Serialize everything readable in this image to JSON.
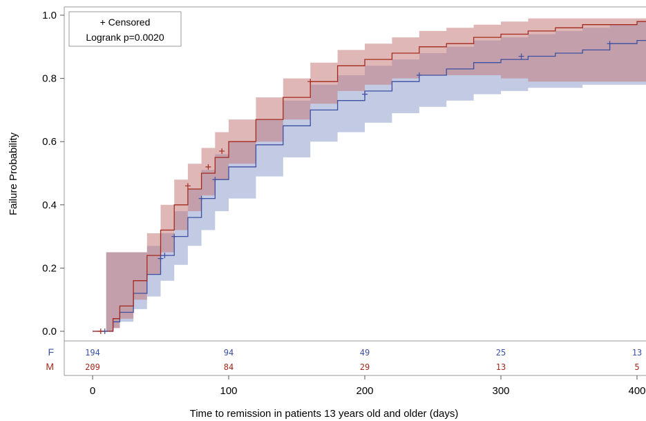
{
  "chart_data": {
    "type": "line",
    "subtype": "kaplan-meier-failure",
    "xlabel": "Time to remission in patients 13 years old and older (days)",
    "ylabel": "Failure Probability",
    "xlim": [
      -20,
      410
    ],
    "ylim": [
      -0.02,
      1.03
    ],
    "x_ticks": [
      0,
      100,
      200,
      300,
      400
    ],
    "y_ticks": [
      0.0,
      0.2,
      0.4,
      0.6,
      0.8,
      1.0
    ],
    "x_tick_labels": [
      "0",
      "100",
      "200",
      "300",
      "400"
    ],
    "y_tick_labels": [
      "0.0",
      "0.2",
      "0.4",
      "0.6",
      "0.8",
      "1.0"
    ],
    "grid": false,
    "legend": {
      "placement": "top-left",
      "lines": [
        "+ Censored",
        "Logrank p=0.0020"
      ]
    },
    "colors": {
      "F": "#3b4fa0",
      "M": "#a3281c",
      "F_band": "#9aa6d2",
      "M_band": "#c57b7b"
    },
    "series": [
      {
        "name": "F",
        "x": [
          0,
          10,
          15,
          20,
          30,
          40,
          50,
          60,
          70,
          80,
          90,
          100,
          120,
          140,
          160,
          180,
          200,
          220,
          240,
          260,
          280,
          300,
          320,
          340,
          360,
          380,
          400,
          410
        ],
        "y": [
          0,
          0,
          0.03,
          0.06,
          0.12,
          0.18,
          0.24,
          0.3,
          0.36,
          0.42,
          0.48,
          0.52,
          0.59,
          0.65,
          0.7,
          0.73,
          0.76,
          0.79,
          0.81,
          0.83,
          0.85,
          0.86,
          0.87,
          0.88,
          0.89,
          0.91,
          0.92,
          0.93
        ],
        "lower": [
          0,
          0,
          0.01,
          0.03,
          0.07,
          0.11,
          0.16,
          0.21,
          0.27,
          0.32,
          0.38,
          0.42,
          0.49,
          0.55,
          0.6,
          0.63,
          0.66,
          0.69,
          0.71,
          0.73,
          0.75,
          0.76,
          0.77,
          0.77,
          0.78,
          0.78,
          0.78,
          0.78
        ],
        "upper": [
          0,
          0.25,
          0.25,
          0.25,
          0.25,
          0.27,
          0.31,
          0.38,
          0.45,
          0.51,
          0.56,
          0.6,
          0.67,
          0.73,
          0.78,
          0.81,
          0.84,
          0.86,
          0.88,
          0.9,
          0.92,
          0.93,
          0.94,
          0.95,
          0.96,
          0.97,
          0.98,
          0.98
        ],
        "censored": [
          [
            9,
            0
          ],
          [
            50,
            0.23
          ],
          [
            53,
            0.24
          ],
          [
            60,
            0.3
          ],
          [
            80,
            0.42
          ],
          [
            90,
            0.48
          ],
          [
            200,
            0.75
          ],
          [
            240,
            0.81
          ],
          [
            315,
            0.87
          ],
          [
            380,
            0.91
          ]
        ],
        "at_risk": [
          194,
          94,
          49,
          25,
          13
        ]
      },
      {
        "name": "M",
        "x": [
          0,
          10,
          15,
          20,
          30,
          40,
          50,
          60,
          70,
          80,
          90,
          100,
          120,
          140,
          160,
          180,
          200,
          220,
          240,
          260,
          280,
          300,
          320,
          340,
          360,
          380,
          400,
          410
        ],
        "y": [
          0,
          0,
          0.04,
          0.08,
          0.16,
          0.24,
          0.32,
          0.4,
          0.45,
          0.5,
          0.55,
          0.6,
          0.67,
          0.74,
          0.79,
          0.84,
          0.86,
          0.88,
          0.9,
          0.91,
          0.93,
          0.94,
          0.95,
          0.96,
          0.97,
          0.97,
          0.98,
          0.98
        ],
        "lower": [
          0,
          0,
          0.01,
          0.04,
          0.1,
          0.18,
          0.25,
          0.32,
          0.38,
          0.43,
          0.48,
          0.53,
          0.6,
          0.67,
          0.72,
          0.76,
          0.78,
          0.8,
          0.81,
          0.81,
          0.81,
          0.8,
          0.79,
          0.79,
          0.79,
          0.79,
          0.79,
          0.79
        ],
        "upper": [
          0,
          0.25,
          0.25,
          0.25,
          0.25,
          0.31,
          0.4,
          0.48,
          0.53,
          0.58,
          0.63,
          0.67,
          0.74,
          0.8,
          0.85,
          0.89,
          0.91,
          0.93,
          0.95,
          0.96,
          0.97,
          0.98,
          0.99,
          0.99,
          0.99,
          0.99,
          0.99,
          0.99
        ],
        "censored": [
          [
            6,
            0
          ],
          [
            70,
            0.46
          ],
          [
            85,
            0.52
          ],
          [
            95,
            0.57
          ],
          [
            160,
            0.79
          ]
        ],
        "at_risk": [
          209,
          84,
          29,
          13,
          5
        ]
      }
    ],
    "at_risk_times": [
      0,
      100,
      200,
      300,
      400
    ],
    "at_risk_labels": [
      "F",
      "M"
    ]
  }
}
